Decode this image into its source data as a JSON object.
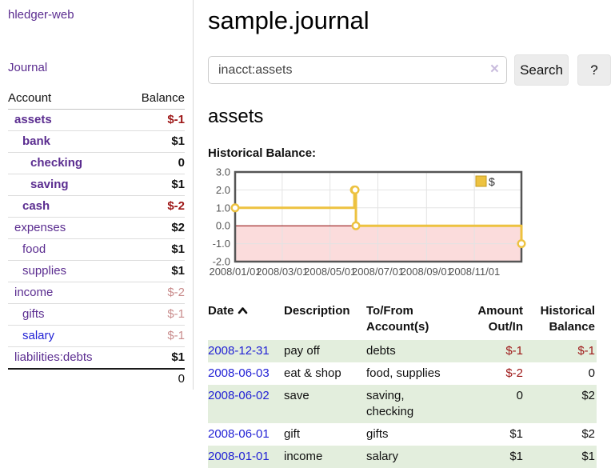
{
  "app": {
    "title": "hledger-web",
    "nav_journal": "Journal"
  },
  "sidebar": {
    "accounts_header": {
      "account": "Account",
      "balance": "Balance"
    },
    "accounts": [
      {
        "name": "assets",
        "level": 1,
        "bold": true,
        "balance": "$-1",
        "balance_style": "neg-strong"
      },
      {
        "name": "bank",
        "level": 2,
        "bold": true,
        "balance": "$1",
        "balance_style": "pos"
      },
      {
        "name": "checking",
        "level": 3,
        "bold": true,
        "balance": "0",
        "balance_style": "pos"
      },
      {
        "name": "saving",
        "level": 3,
        "bold": true,
        "balance": "$1",
        "balance_style": "pos"
      },
      {
        "name": "cash",
        "level": 2,
        "bold": true,
        "balance": "$-2",
        "balance_style": "neg-strong"
      },
      {
        "name": "expenses",
        "level": 1,
        "bold": false,
        "balance": "$2",
        "balance_style": "pos"
      },
      {
        "name": "food",
        "level": 2,
        "bold": false,
        "balance": "$1",
        "balance_style": "pos"
      },
      {
        "name": "supplies",
        "level": 2,
        "bold": false,
        "balance": "$1",
        "balance_style": "pos"
      },
      {
        "name": "income",
        "level": 1,
        "bold": false,
        "balance": "$-2",
        "balance_style": "neg-faded"
      },
      {
        "name": "gifts",
        "level": 2,
        "bold": false,
        "balance": "$-1",
        "balance_style": "neg-faded"
      },
      {
        "name": "salary",
        "level": 2,
        "bold": false,
        "link_style": "unvisited",
        "balance": "$-1",
        "balance_style": "neg-faded"
      },
      {
        "name": "liabilities:debts",
        "level": 1,
        "bold": false,
        "balance": "$1",
        "balance_style": "pos"
      }
    ],
    "total": "0"
  },
  "header": {
    "title": "sample.journal"
  },
  "search": {
    "value": "inacct:assets",
    "clear_icon": "×",
    "button": "Search",
    "help_button": "?"
  },
  "account_page": {
    "title": "assets",
    "chart_label": "Historical Balance:"
  },
  "chart_data": {
    "type": "line",
    "step": true,
    "title": "Historical Balance",
    "series": [
      {
        "name": "$",
        "color": "#edc240",
        "points": [
          [
            "2008-01-01",
            1
          ],
          [
            "2008-06-01",
            2
          ],
          [
            "2008-06-02",
            2
          ],
          [
            "2008-06-03",
            0
          ],
          [
            "2008-12-31",
            -1
          ]
        ]
      }
    ],
    "ylim": [
      -2,
      3
    ],
    "yticks": [
      3,
      2,
      1,
      0,
      -1,
      -2
    ],
    "xticks": [
      "2008/01/01",
      "2008/03/01",
      "2008/05/01",
      "2008/07/01",
      "2008/09/01",
      "2008/11/01"
    ],
    "xrange": [
      "2008-01-01",
      "2008-12-31"
    ],
    "negative_region_color": "#fbdcdc",
    "zero_line_color": "#8b0000",
    "grid_color": "#e3e3e3",
    "border_color": "#555555",
    "tick_label_color": "#545454",
    "legend": {
      "label": "$",
      "position": "top-right"
    }
  },
  "register": {
    "columns": [
      "Date",
      "Description",
      "To/From Account(s)",
      "Amount Out/In",
      "Historical Balance"
    ],
    "sort_column": "Date",
    "sort_direction": "asc",
    "rows": [
      {
        "date": "2008-12-31",
        "description": "pay off",
        "accounts": "debts",
        "amount": "$-1",
        "amount_negative": true,
        "balance": "$-1",
        "balance_negative": true
      },
      {
        "date": "2008-06-03",
        "description": "eat & shop",
        "accounts": "food, supplies",
        "amount": "$-2",
        "amount_negative": true,
        "balance": "0",
        "balance_negative": false
      },
      {
        "date": "2008-06-02",
        "description": "save",
        "accounts": "saving, checking",
        "amount": "0",
        "amount_negative": false,
        "balance": "$2",
        "balance_negative": false
      },
      {
        "date": "2008-06-01",
        "description": "gift",
        "accounts": "gifts",
        "amount": "$1",
        "amount_negative": false,
        "balance": "$2",
        "balance_negative": false
      },
      {
        "date": "2008-01-01",
        "description": "income",
        "accounts": "salary",
        "amount": "$1",
        "amount_negative": false,
        "balance": "$1",
        "balance_negative": false
      }
    ]
  }
}
